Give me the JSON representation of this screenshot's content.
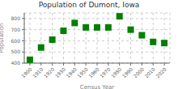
{
  "chart_data": {
    "type": "scatter",
    "title": "Population of Dumont, Iowa",
    "xlabel": "Census Year",
    "ylabel": "Population",
    "x": [
      1900,
      1910,
      1920,
      1930,
      1940,
      1950,
      1960,
      1970,
      1980,
      1990,
      2000,
      2010,
      2020
    ],
    "values": [
      430,
      540,
      610,
      690,
      760,
      720,
      720,
      720,
      820,
      700,
      650,
      590,
      580
    ],
    "color": "#008000",
    "marker": "square",
    "xlim": [
      1895,
      2025
    ],
    "ylim": [
      400,
      850
    ],
    "xticks": [
      1900,
      1910,
      1920,
      1930,
      1940,
      1950,
      1960,
      1970,
      1980,
      1990,
      2000,
      2010,
      2020
    ],
    "yticks": [
      400,
      500,
      600,
      700,
      800
    ],
    "grid": true
  }
}
